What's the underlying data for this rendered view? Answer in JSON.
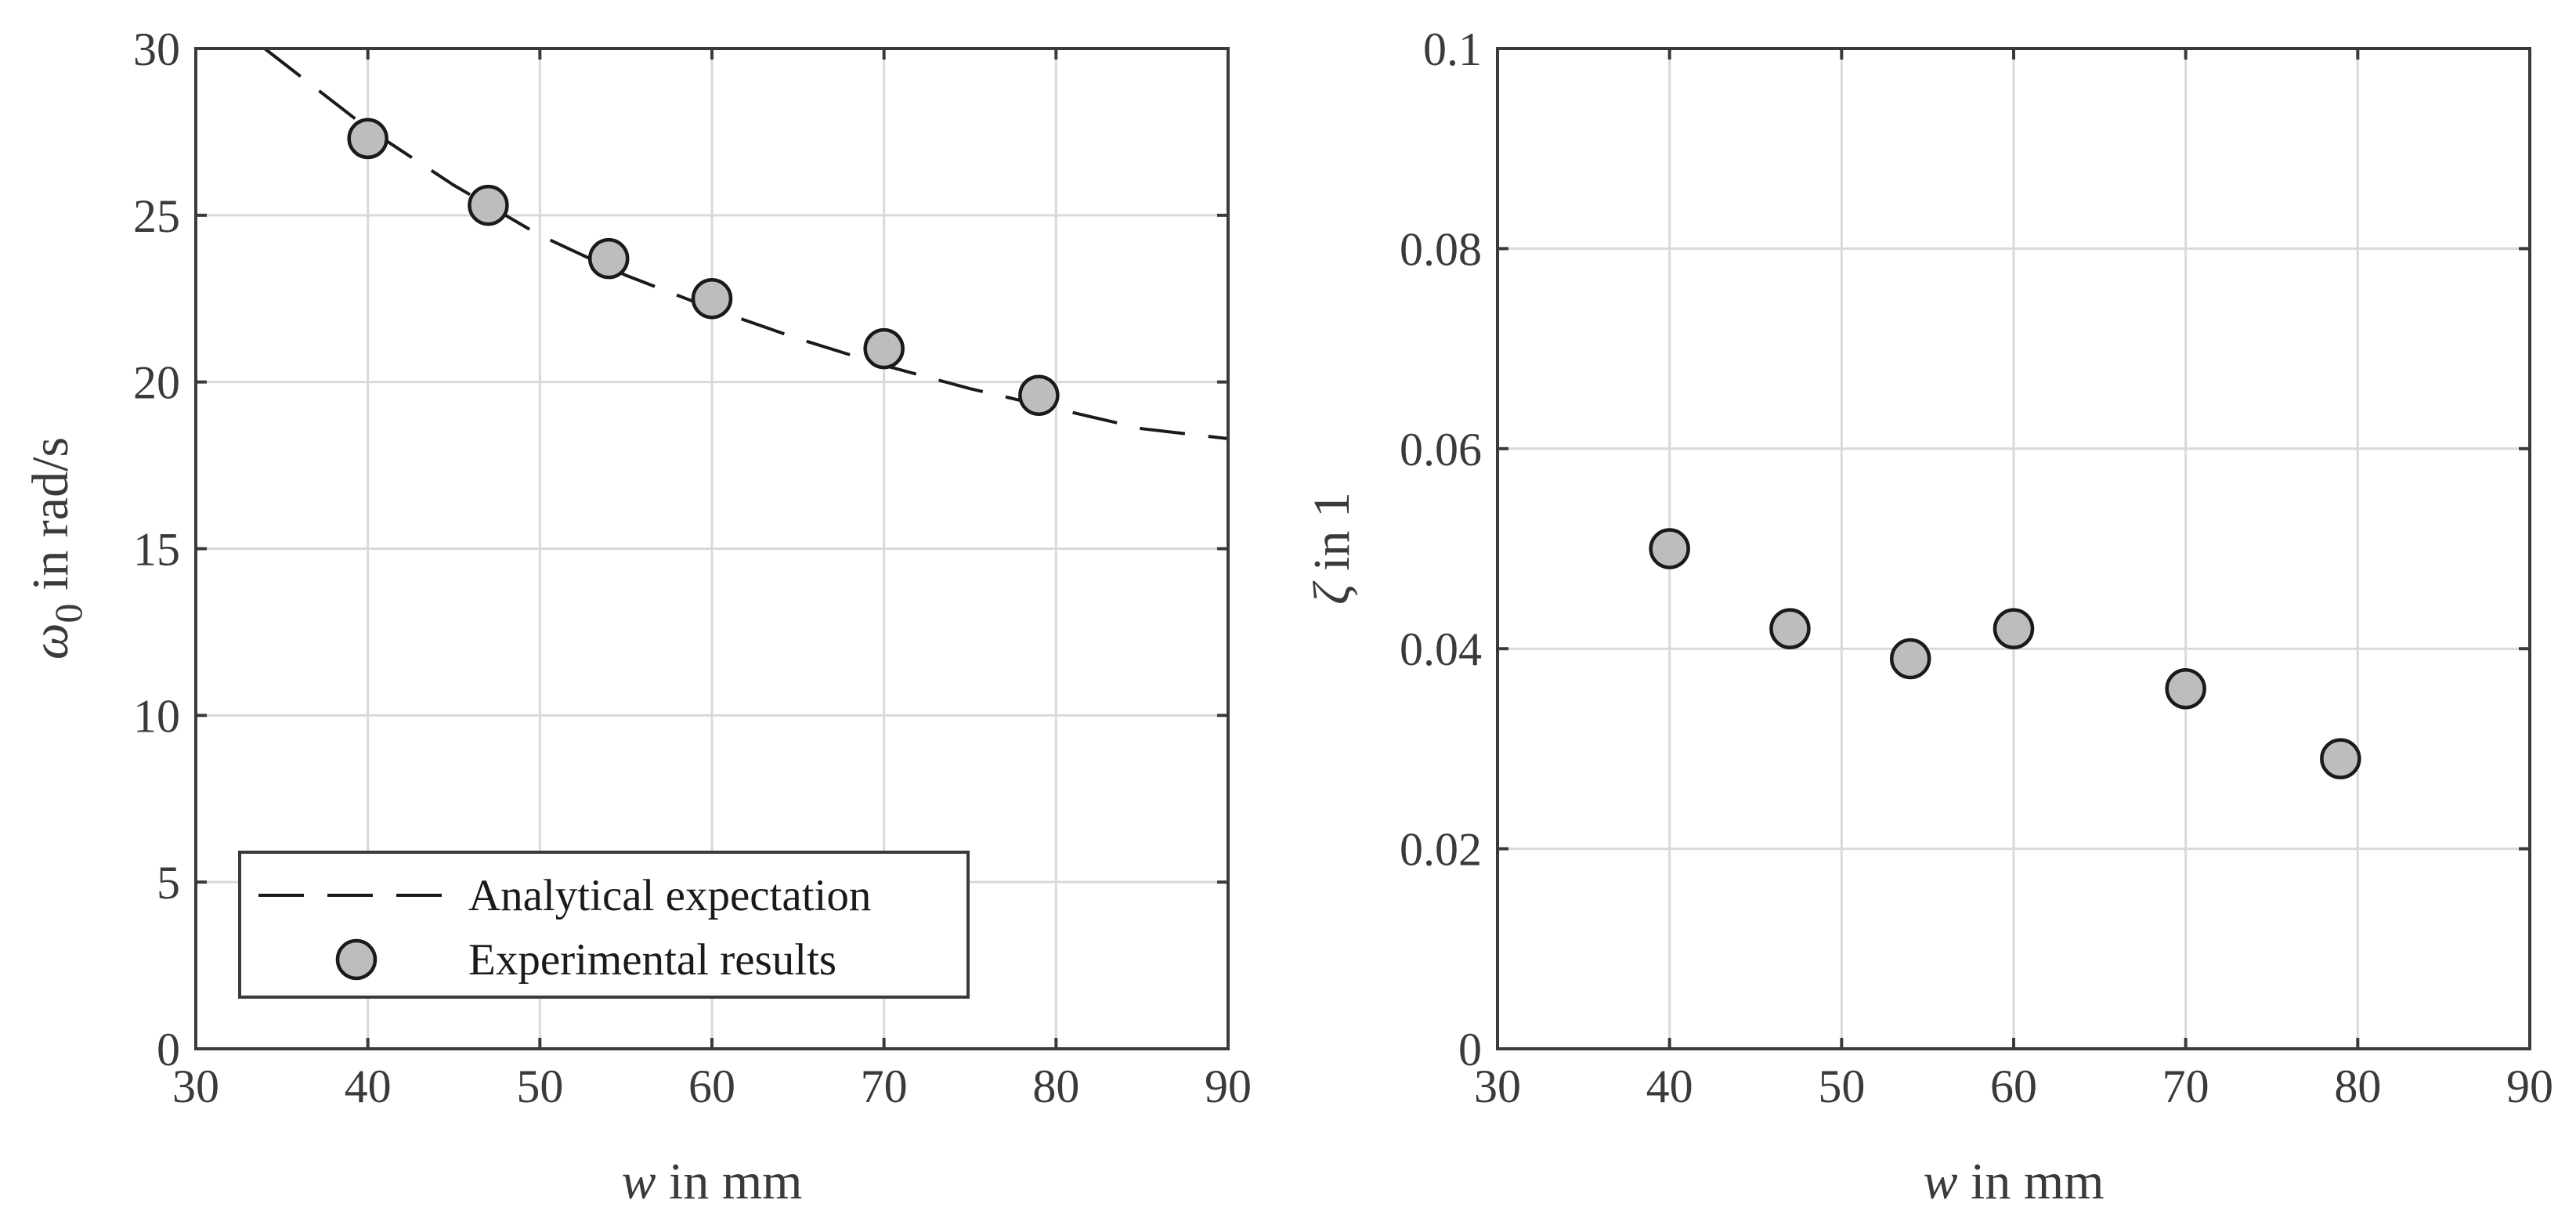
{
  "chart_data": [
    {
      "type": "line",
      "title": "",
      "xlabel_var": "w",
      "xlabel_rest": " in mm",
      "ylabel_var": "ω",
      "ylabel_sub": "0",
      "ylabel_rest": " in rad/s",
      "xlim": [
        30,
        90
      ],
      "ylim": [
        0,
        30
      ],
      "xticks": [
        30,
        40,
        50,
        60,
        70,
        80,
        90
      ],
      "yticks": [
        0,
        5,
        10,
        15,
        20,
        25,
        30
      ],
      "grid": true,
      "legend_position": "bottom-left",
      "series": [
        {
          "name": "Analytical expectation",
          "kind": "dashed-line",
          "x": [
            34,
            40,
            45,
            50,
            55,
            60,
            65,
            70,
            75,
            80,
            85,
            90
          ],
          "y": [
            30.0,
            27.6,
            25.9,
            24.4,
            23.2,
            22.2,
            21.3,
            20.5,
            19.8,
            19.2,
            18.6,
            18.3
          ]
        },
        {
          "name": "Experimental results",
          "kind": "markers",
          "x": [
            40,
            47,
            54,
            60,
            70,
            79
          ],
          "y": [
            27.3,
            25.3,
            23.7,
            22.5,
            21.0,
            19.6
          ]
        }
      ]
    },
    {
      "type": "scatter",
      "title": "",
      "xlabel_var": "w",
      "xlabel_rest": " in mm",
      "ylabel_var": "ζ",
      "ylabel_rest": " in 1",
      "xlim": [
        30,
        90
      ],
      "ylim": [
        0,
        0.1
      ],
      "xticks": [
        30,
        40,
        50,
        60,
        70,
        80,
        90
      ],
      "yticks": [
        0,
        0.02,
        0.04,
        0.06,
        0.08,
        0.1
      ],
      "grid": true,
      "series": [
        {
          "name": "Experimental results",
          "kind": "markers",
          "x": [
            40,
            47,
            54,
            60,
            70,
            79
          ],
          "y": [
            0.05,
            0.042,
            0.039,
            0.042,
            0.036,
            0.029
          ]
        }
      ]
    }
  ]
}
